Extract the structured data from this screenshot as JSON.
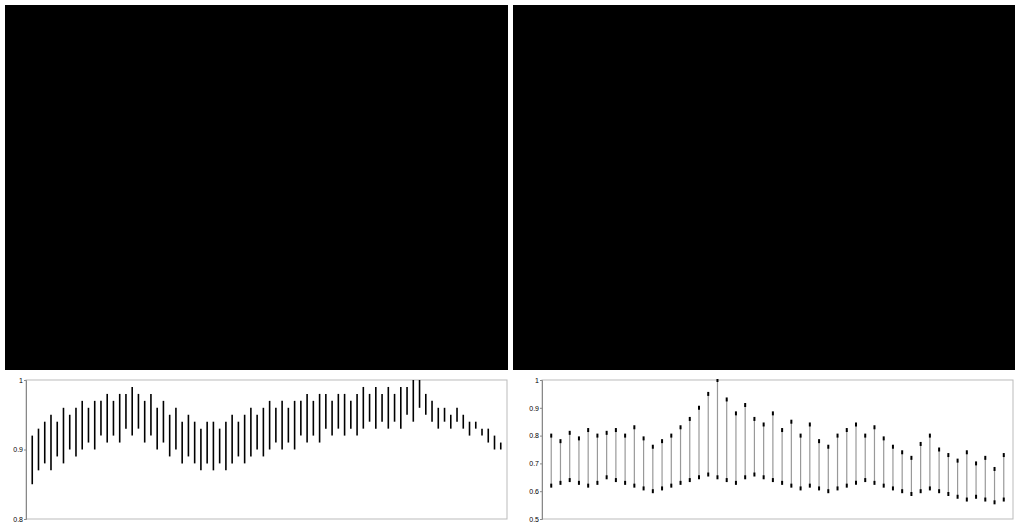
{
  "chart_data": [
    {
      "type": "range",
      "tick_labels": "y",
      "x": [
        1,
        2,
        3,
        4,
        5,
        6,
        7,
        8,
        9,
        10,
        11,
        12,
        13,
        14,
        15,
        16,
        17,
        18,
        19,
        20,
        21,
        22,
        23,
        24,
        25,
        26,
        27,
        28,
        29,
        30,
        31,
        32,
        33,
        34,
        35,
        36,
        37,
        38,
        39,
        40,
        41,
        42,
        43,
        44,
        45,
        46,
        47,
        48,
        49,
        50,
        51,
        52,
        53,
        54,
        55,
        56,
        57,
        58,
        59,
        60,
        61,
        62,
        63,
        64,
        65,
        66,
        67,
        68,
        69,
        70,
        71,
        72,
        73,
        74,
        75,
        76
      ],
      "xlim": [
        0,
        77
      ],
      "ylim": [
        0.8,
        1
      ],
      "yticks": [
        0.8,
        0.9,
        1
      ],
      "series": [
        {
          "color": "#000000",
          "low": [
            0.85,
            0.87,
            0.88,
            0.87,
            0.89,
            0.88,
            0.9,
            0.89,
            0.9,
            0.91,
            0.9,
            0.92,
            0.91,
            0.92,
            0.91,
            0.93,
            0.92,
            0.93,
            0.91,
            0.92,
            0.9,
            0.91,
            0.89,
            0.9,
            0.88,
            0.89,
            0.88,
            0.87,
            0.88,
            0.87,
            0.88,
            0.87,
            0.88,
            0.89,
            0.88,
            0.89,
            0.9,
            0.89,
            0.9,
            0.91,
            0.9,
            0.91,
            0.9,
            0.92,
            0.91,
            0.92,
            0.91,
            0.93,
            0.92,
            0.93,
            0.92,
            0.93,
            0.92,
            0.93,
            0.94,
            0.93,
            0.94,
            0.93,
            0.94,
            0.93,
            0.95,
            0.94,
            0.96,
            0.95,
            0.94,
            0.93,
            0.94,
            0.93,
            0.94,
            0.93,
            0.92,
            0.93,
            0.92,
            0.91,
            0.9,
            0.9
          ],
          "high": [
            0.92,
            0.93,
            0.94,
            0.95,
            0.94,
            0.96,
            0.95,
            0.96,
            0.97,
            0.96,
            0.97,
            0.97,
            0.98,
            0.97,
            0.98,
            0.98,
            0.99,
            0.98,
            0.97,
            0.98,
            0.96,
            0.97,
            0.95,
            0.96,
            0.94,
            0.95,
            0.94,
            0.93,
            0.94,
            0.94,
            0.93,
            0.94,
            0.95,
            0.94,
            0.95,
            0.96,
            0.95,
            0.96,
            0.97,
            0.96,
            0.97,
            0.96,
            0.97,
            0.97,
            0.98,
            0.97,
            0.98,
            0.98,
            0.97,
            0.98,
            0.98,
            0.97,
            0.98,
            0.99,
            0.98,
            0.99,
            0.98,
            0.99,
            0.98,
            0.99,
            0.99,
            1.0,
            1.0,
            0.98,
            0.97,
            0.96,
            0.96,
            0.95,
            0.96,
            0.95,
            0.94,
            0.94,
            0.93,
            0.93,
            0.92,
            0.91
          ]
        }
      ]
    },
    {
      "type": "range",
      "tick_labels": "y",
      "x": [
        1,
        2,
        3,
        4,
        5,
        6,
        7,
        8,
        9,
        10,
        11,
        12,
        13,
        14,
        15,
        16,
        17,
        18,
        19,
        20,
        21,
        22,
        23,
        24,
        25,
        26,
        27,
        28,
        29,
        30,
        31,
        32,
        33,
        34,
        35,
        36,
        37,
        38,
        39,
        40,
        41,
        42,
        43,
        44,
        45,
        46,
        47,
        48,
        49,
        50
      ],
      "xlim": [
        0,
        51
      ],
      "ylim": [
        0.5,
        1
      ],
      "yticks": [
        0.5,
        0.6,
        0.7,
        0.8,
        0.9,
        1
      ],
      "series": [
        {
          "color": "#999999",
          "marker": "dash",
          "low": [
            0.62,
            0.63,
            0.64,
            0.63,
            0.62,
            0.63,
            0.65,
            0.64,
            0.63,
            0.62,
            0.61,
            0.6,
            0.61,
            0.62,
            0.63,
            0.64,
            0.65,
            0.66,
            0.65,
            0.64,
            0.63,
            0.65,
            0.66,
            0.65,
            0.64,
            0.63,
            0.62,
            0.61,
            0.62,
            0.61,
            0.6,
            0.61,
            0.62,
            0.63,
            0.64,
            0.63,
            0.62,
            0.61,
            0.6,
            0.59,
            0.6,
            0.61,
            0.6,
            0.59,
            0.58,
            0.57,
            0.58,
            0.57,
            0.56,
            0.57
          ],
          "high": [
            0.8,
            0.78,
            0.81,
            0.79,
            0.82,
            0.8,
            0.81,
            0.82,
            0.8,
            0.83,
            0.79,
            0.76,
            0.78,
            0.8,
            0.83,
            0.86,
            0.9,
            0.95,
            1.0,
            0.93,
            0.88,
            0.91,
            0.86,
            0.84,
            0.88,
            0.82,
            0.85,
            0.8,
            0.84,
            0.78,
            0.76,
            0.8,
            0.82,
            0.84,
            0.8,
            0.83,
            0.79,
            0.76,
            0.74,
            0.72,
            0.77,
            0.8,
            0.75,
            0.73,
            0.71,
            0.74,
            0.7,
            0.72,
            0.68,
            0.73
          ]
        }
      ]
    }
  ]
}
